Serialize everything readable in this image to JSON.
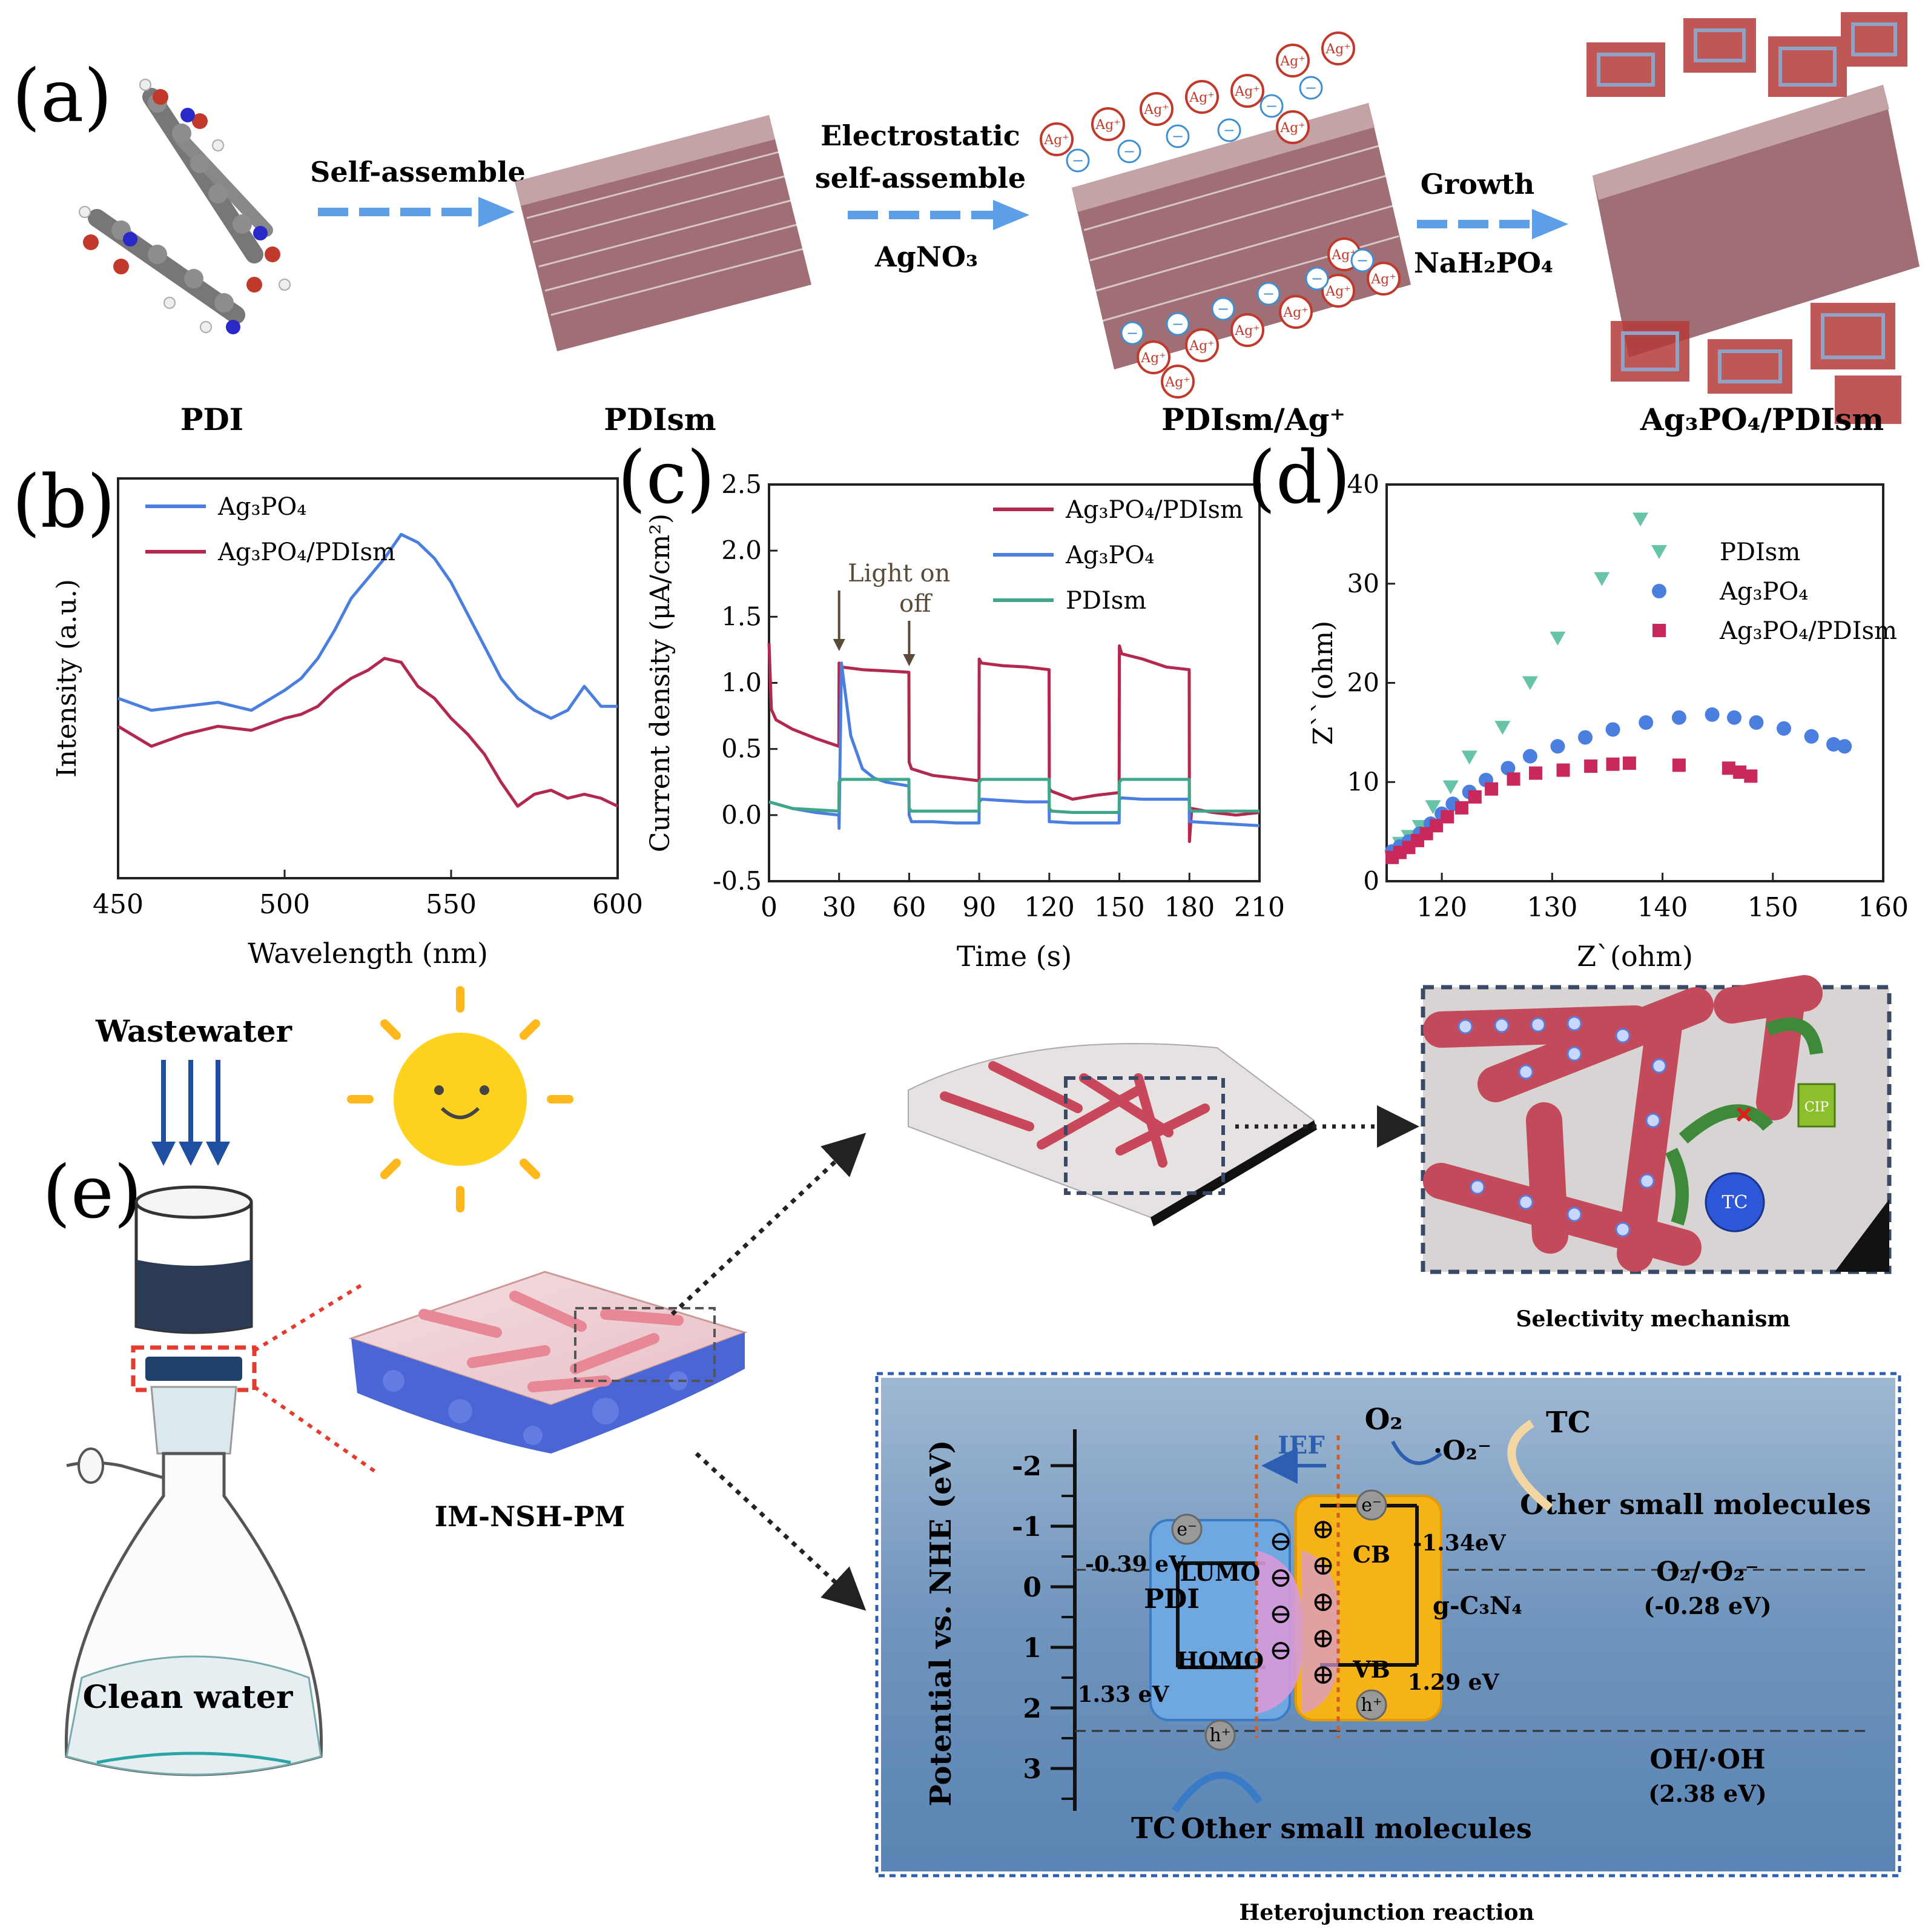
{
  "panel_a": {
    "label": "(a)",
    "steps": [
      {
        "name": "PDI"
      },
      {
        "name": "PDIsm"
      },
      {
        "name": "PDIsm/Ag⁺"
      },
      {
        "name": "Ag₃PO₄/PDIsm"
      }
    ],
    "arrows": [
      {
        "top": "Self-assemble",
        "bottom": ""
      },
      {
        "top": "Electrostatic",
        "top2": "self-assemble",
        "bottom": "AgNO₃"
      },
      {
        "top": "Growth",
        "bottom": "NaH₂PO₄"
      }
    ],
    "ion_label": "Ag⁺",
    "minus": "−"
  },
  "panel_b": {
    "label": "(b)",
    "chart_data": {
      "type": "line",
      "xlabel": "Wavelength (nm)",
      "ylabel": "Intensity (a.u.)",
      "xlim": [
        450,
        600
      ],
      "xticks": [
        450,
        500,
        550,
        600
      ],
      "series": [
        {
          "name": "Ag₃PO₄",
          "color": "#4a7fe0",
          "x": [
            450,
            460,
            470,
            480,
            490,
            500,
            505,
            510,
            515,
            520,
            525,
            530,
            535,
            540,
            545,
            550,
            555,
            560,
            565,
            570,
            575,
            580,
            585,
            590,
            595,
            600
          ],
          "y": [
            0.45,
            0.42,
            0.43,
            0.44,
            0.42,
            0.47,
            0.5,
            0.55,
            0.62,
            0.7,
            0.75,
            0.8,
            0.86,
            0.84,
            0.8,
            0.74,
            0.66,
            0.58,
            0.5,
            0.45,
            0.42,
            0.4,
            0.42,
            0.48,
            0.43,
            0.43
          ]
        },
        {
          "name": "Ag₃PO₄/PDIsm",
          "color": "#b3284f",
          "x": [
            450,
            460,
            470,
            480,
            490,
            500,
            505,
            510,
            515,
            520,
            525,
            530,
            535,
            540,
            545,
            550,
            555,
            560,
            565,
            570,
            575,
            580,
            585,
            590,
            595,
            600
          ],
          "y": [
            0.38,
            0.33,
            0.36,
            0.38,
            0.37,
            0.4,
            0.41,
            0.43,
            0.47,
            0.5,
            0.52,
            0.55,
            0.54,
            0.48,
            0.45,
            0.4,
            0.36,
            0.31,
            0.24,
            0.18,
            0.21,
            0.22,
            0.2,
            0.21,
            0.2,
            0.18
          ]
        }
      ]
    }
  },
  "panel_c": {
    "label": "(c)",
    "annotation_on": "Light on",
    "annotation_off": "off",
    "chart_data": {
      "type": "line",
      "xlabel": "Time (s)",
      "ylabel": "Current  density (μA/cm²)",
      "xlim": [
        0,
        210
      ],
      "ylim": [
        -0.5,
        2.5
      ],
      "xticks": [
        0,
        30,
        60,
        90,
        120,
        150,
        180,
        210
      ],
      "yticks": [
        -0.5,
        0.0,
        0.5,
        1.0,
        1.5,
        2.0,
        2.5
      ],
      "series": [
        {
          "name": "Ag₃PO₄/PDIsm",
          "color": "#b3284f",
          "x": [
            0,
            1,
            3,
            10,
            20,
            29.9,
            30,
            31,
            40,
            50,
            59.9,
            60,
            61,
            70,
            80,
            89.9,
            90,
            91,
            100,
            110,
            119.9,
            120,
            121,
            130,
            140,
            149.9,
            150,
            151,
            160,
            170,
            179.9,
            180,
            181,
            190,
            200,
            210
          ],
          "y": [
            1.3,
            0.8,
            0.72,
            0.65,
            0.58,
            0.52,
            1.15,
            1.12,
            1.1,
            1.09,
            1.08,
            0.4,
            0.35,
            0.3,
            0.28,
            0.26,
            1.18,
            1.15,
            1.13,
            1.12,
            1.1,
            0.2,
            0.18,
            0.12,
            0.15,
            0.17,
            1.28,
            1.22,
            1.18,
            1.12,
            1.1,
            -0.2,
            0.05,
            0.02,
            0.0,
            0.02
          ]
        },
        {
          "name": "Ag₃PO₄",
          "color": "#4a7fe0",
          "x": [
            0,
            10,
            20,
            29.9,
            30,
            31,
            35,
            40,
            45,
            50,
            59.9,
            60,
            61,
            70,
            80,
            89.9,
            90,
            91,
            100,
            110,
            119.9,
            120,
            121,
            130,
            140,
            149.9,
            150,
            151,
            160,
            170,
            179.9,
            180,
            181,
            190,
            200,
            210
          ],
          "y": [
            0.1,
            0.05,
            0.02,
            0.0,
            -0.1,
            1.15,
            0.6,
            0.35,
            0.28,
            0.25,
            0.22,
            0.0,
            -0.05,
            -0.05,
            -0.06,
            -0.06,
            0.1,
            0.12,
            0.11,
            0.1,
            0.1,
            -0.05,
            -0.05,
            -0.06,
            -0.06,
            -0.06,
            0.12,
            0.13,
            0.12,
            0.12,
            0.12,
            -0.05,
            -0.05,
            -0.06,
            -0.07,
            -0.08
          ]
        },
        {
          "name": "PDIsm",
          "color": "#3fa68a",
          "x": [
            0,
            10,
            20,
            29.9,
            30,
            31,
            40,
            50,
            59.9,
            60,
            61,
            70,
            80,
            89.9,
            90,
            91,
            100,
            110,
            119.9,
            120,
            121,
            130,
            140,
            149.9,
            150,
            151,
            160,
            170,
            179.9,
            180,
            181,
            190,
            200,
            210
          ],
          "y": [
            0.1,
            0.05,
            0.04,
            0.03,
            0.25,
            0.27,
            0.27,
            0.27,
            0.27,
            0.05,
            0.03,
            0.03,
            0.03,
            0.03,
            0.25,
            0.27,
            0.27,
            0.27,
            0.27,
            0.05,
            0.03,
            0.02,
            0.02,
            0.02,
            0.25,
            0.27,
            0.27,
            0.27,
            0.27,
            0.05,
            0.03,
            0.03,
            0.03,
            0.03
          ]
        }
      ]
    }
  },
  "panel_d": {
    "label": "(d)",
    "chart_data": {
      "type": "scatter",
      "xlabel": "Z`(ohm)",
      "ylabel": "Z``(ohm)",
      "xlim": [
        115,
        160
      ],
      "ylim": [
        0,
        40
      ],
      "xticks": [
        120,
        130,
        140,
        150,
        160
      ],
      "yticks": [
        0,
        10,
        20,
        30,
        40
      ],
      "series": [
        {
          "name": "PDIsm",
          "color": "#68c4a8",
          "marker": "triangle-down",
          "x": [
            115.5,
            116.2,
            117.0,
            118.0,
            119.2,
            120.8,
            122.5,
            125.5,
            128.0,
            130.5,
            134.5,
            138.0
          ],
          "y": [
            2.5,
            3.8,
            4.5,
            5.5,
            7.5,
            9.5,
            12.5,
            15.5,
            20.0,
            24.5,
            30.5,
            36.5
          ]
        },
        {
          "name": "Ag₃PO₄",
          "color": "#4a7fe0",
          "marker": "circle",
          "x": [
            115.5,
            116.2,
            117.0,
            118.0,
            119.0,
            120.0,
            121.0,
            122.5,
            124.0,
            126.0,
            128.0,
            130.5,
            133.0,
            135.5,
            138.5,
            141.5,
            144.5,
            146.5,
            148.5,
            151.0,
            153.5,
            155.5,
            156.5
          ],
          "y": [
            3.0,
            3.5,
            4.0,
            4.8,
            5.8,
            6.8,
            7.8,
            9.0,
            10.2,
            11.4,
            12.6,
            13.6,
            14.5,
            15.3,
            16.0,
            16.5,
            16.8,
            16.5,
            16.0,
            15.4,
            14.6,
            13.8,
            13.6
          ]
        },
        {
          "name": "Ag₃PO₄/PDIsm",
          "color": "#c8285a",
          "marker": "square",
          "x": [
            115.5,
            116.2,
            117.0,
            117.8,
            118.6,
            119.5,
            120.5,
            121.8,
            123.0,
            124.5,
            126.5,
            128.5,
            131.0,
            133.5,
            135.5,
            137.0,
            141.5,
            146.0,
            147.0,
            148.0
          ],
          "y": [
            2.4,
            2.9,
            3.4,
            4.1,
            4.8,
            5.6,
            6.5,
            7.4,
            8.5,
            9.3,
            10.3,
            10.9,
            11.2,
            11.6,
            11.8,
            11.9,
            11.7,
            11.4,
            11.0,
            10.6
          ]
        }
      ]
    }
  },
  "panel_e": {
    "label": "(e)",
    "wastewater": "Wastewater",
    "clean_water": "Clean water",
    "membrane": "IM-NSH-PM",
    "selectivity_caption": "Selectivity mechanism",
    "heterojunction_caption": "Heterojunction reaction",
    "cip": "CIP",
    "tc": "TC",
    "energy": {
      "axis_label": "Potential vs. NHE (eV)",
      "ticks": [
        -2,
        -1,
        0,
        1,
        2,
        3
      ],
      "ief": "IEF",
      "o2": "O₂",
      "o2_radical": "·O₂⁻",
      "tc_top": "TC",
      "products_top": "Other small molecules",
      "tc_bottom": "TC",
      "products_bottom": "Other small molecules",
      "electron": "e⁻",
      "hole": "h⁺",
      "plus": "⊕",
      "minus": "⊖",
      "pdi": "PDI",
      "lumo": "LUMO",
      "homo": "HOMO",
      "cb": "CB",
      "vb": "VB",
      "gcn": "g-C₃N₄",
      "pdi_lumo_val": "-0.39 eV",
      "pdi_homo_val": "1.33 eV",
      "gcn_cb_val": "-1.34eV",
      "gcn_vb_val": "1.29 eV",
      "o2_couple": "O₂/·O₂⁻",
      "o2_couple_val": "(-0.28 eV)",
      "oh_couple": "OH/·OH",
      "oh_couple_val": "(2.38 eV)"
    }
  }
}
